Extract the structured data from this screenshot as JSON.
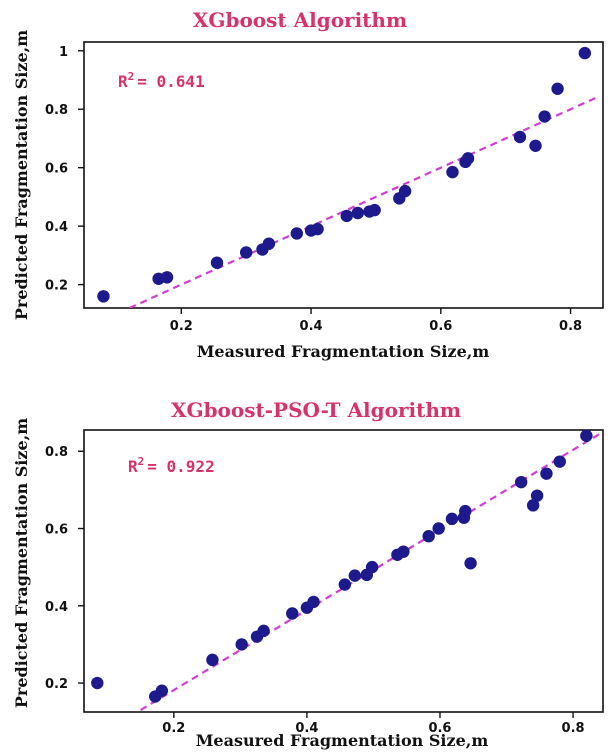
{
  "colors": {
    "title": "#d6336c",
    "point": "#1c1a8c",
    "fit": "#d63ad6",
    "r2": "#d6336c"
  },
  "chart_data": [
    {
      "type": "scatter",
      "title": "XGboost Algorithm",
      "xlabel": "Measured Fragmentation Size,m",
      "ylabel": "Predicted Fragmentation Size,m",
      "annotation": {
        "prefix": "R",
        "sup": "2",
        "text": "= 0.641"
      },
      "xlim": [
        0.05,
        0.85
      ],
      "ylim": [
        0.12,
        1.03
      ],
      "xticks": [
        0.2,
        0.4,
        0.6,
        0.8
      ],
      "yticks": [
        0.2,
        0.4,
        0.6,
        0.8,
        1
      ],
      "grid": false,
      "fit_line": [
        [
          0.12,
          0.12
        ],
        [
          0.84,
          0.84
        ]
      ],
      "points": [
        [
          0.08,
          0.16
        ],
        [
          0.165,
          0.22
        ],
        [
          0.178,
          0.225
        ],
        [
          0.255,
          0.275
        ],
        [
          0.3,
          0.31
        ],
        [
          0.325,
          0.32
        ],
        [
          0.335,
          0.34
        ],
        [
          0.378,
          0.375
        ],
        [
          0.4,
          0.385
        ],
        [
          0.41,
          0.39
        ],
        [
          0.455,
          0.435
        ],
        [
          0.472,
          0.445
        ],
        [
          0.49,
          0.45
        ],
        [
          0.498,
          0.455
        ],
        [
          0.536,
          0.495
        ],
        [
          0.545,
          0.52
        ],
        [
          0.618,
          0.585
        ],
        [
          0.638,
          0.62
        ],
        [
          0.642,
          0.632
        ],
        [
          0.722,
          0.705
        ],
        [
          0.746,
          0.675
        ],
        [
          0.76,
          0.775
        ],
        [
          0.78,
          0.87
        ],
        [
          0.822,
          0.992
        ]
      ]
    },
    {
      "type": "scatter",
      "title": "XGboost-PSO-T Algorithm",
      "xlabel": "Measured Fragmentation Size,m",
      "ylabel": "Predicted Fragmentation Size,m",
      "annotation": {
        "prefix": "R",
        "sup": "2",
        "text": "= 0.922"
      },
      "xlim": [
        0.065,
        0.845
      ],
      "ylim": [
        0.125,
        0.855
      ],
      "xticks": [
        0.2,
        0.4,
        0.6,
        0.8
      ],
      "yticks": [
        0.2,
        0.4,
        0.6,
        0.8
      ],
      "grid": false,
      "fit_line": [
        [
          0.15,
          0.13
        ],
        [
          0.84,
          0.845
        ]
      ],
      "points": [
        [
          0.085,
          0.2
        ],
        [
          0.172,
          0.165
        ],
        [
          0.182,
          0.18
        ],
        [
          0.258,
          0.26
        ],
        [
          0.302,
          0.3
        ],
        [
          0.325,
          0.32
        ],
        [
          0.335,
          0.335
        ],
        [
          0.378,
          0.38
        ],
        [
          0.4,
          0.395
        ],
        [
          0.41,
          0.41
        ],
        [
          0.457,
          0.455
        ],
        [
          0.472,
          0.478
        ],
        [
          0.49,
          0.48
        ],
        [
          0.498,
          0.5
        ],
        [
          0.536,
          0.532
        ],
        [
          0.545,
          0.54
        ],
        [
          0.583,
          0.58
        ],
        [
          0.598,
          0.6
        ],
        [
          0.618,
          0.625
        ],
        [
          0.636,
          0.628
        ],
        [
          0.638,
          0.645
        ],
        [
          0.646,
          0.51
        ],
        [
          0.722,
          0.72
        ],
        [
          0.74,
          0.66
        ],
        [
          0.746,
          0.685
        ],
        [
          0.76,
          0.742
        ],
        [
          0.78,
          0.773
        ],
        [
          0.82,
          0.84
        ]
      ]
    }
  ]
}
